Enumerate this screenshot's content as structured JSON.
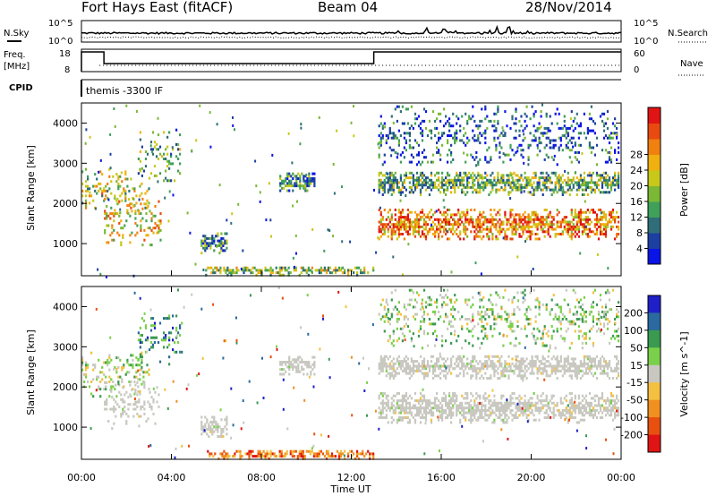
{
  "header": {
    "station": "Fort Hays East (fitACF)",
    "beam": "Beam 04",
    "date": "28/Nov/2014"
  },
  "top_panels": {
    "nsky_label": "N.Sky",
    "nsearch_label": "N.Search",
    "freq_label_1": "Freq.",
    "freq_label_2": "[MHz]",
    "nave_label": "Nave",
    "cpid_label": "CPID",
    "cpid_text": "themis -3300 IF",
    "noise_left_ticks": [
      "10^5",
      "10^0"
    ],
    "noise_right_ticks": [
      "10^5",
      "10^0"
    ],
    "freq_left_ticks": [
      "18",
      "8"
    ],
    "freq_right_ticks": [
      "60",
      "0"
    ]
  },
  "chart_data": [
    {
      "type": "heatmap",
      "quantity": "power",
      "ylabel": "Slant Range [km]",
      "xlabel": "",
      "xlim_hours": [
        0,
        24
      ],
      "ylim": [
        200,
        4500
      ],
      "yticks": [
        1000,
        2000,
        3000,
        4000
      ],
      "colorbar_label": "Power [dB]",
      "colorbar_ticks": [
        4,
        8,
        12,
        16,
        20,
        24,
        28
      ],
      "colorbar_colors": [
        "#0a14e6",
        "#1c3fa2",
        "#2f6e78",
        "#3fa05a",
        "#7ab836",
        "#c8c81a",
        "#f0b010",
        "#f08010",
        "#e84a10",
        "#e01414"
      ],
      "regions": [
        {
          "t": [
            0.0,
            3.0
          ],
          "r": [
            1800,
            2900
          ],
          "level": 0.55
        },
        {
          "t": [
            1.0,
            3.5
          ],
          "r": [
            1000,
            2200
          ],
          "level": 0.6
        },
        {
          "t": [
            2.5,
            4.5
          ],
          "r": [
            2600,
            3900
          ],
          "level": 0.35
        },
        {
          "t": [
            5.3,
            6.5
          ],
          "r": [
            800,
            1300
          ],
          "level": 0.3
        },
        {
          "t": [
            5.5,
            13.0
          ],
          "r": [
            250,
            450
          ],
          "level": 0.45
        },
        {
          "t": [
            8.8,
            10.4
          ],
          "r": [
            2350,
            2800
          ],
          "level": 0.3
        },
        {
          "t": [
            13.2,
            24.0
          ],
          "r": [
            1150,
            1900
          ],
          "level": 0.75
        },
        {
          "t": [
            13.2,
            24.0
          ],
          "r": [
            2250,
            2850
          ],
          "level": 0.4
        },
        {
          "t": [
            13.2,
            24.0
          ],
          "r": [
            3000,
            4500
          ],
          "level": 0.2
        }
      ]
    },
    {
      "type": "heatmap",
      "quantity": "velocity",
      "ylabel": "Slant Range [km]",
      "xlabel": "Time UT",
      "xlim_hours": [
        0,
        24
      ],
      "xtick_labels": [
        "00:00",
        "04:00",
        "08:00",
        "12:00",
        "16:00",
        "20:00",
        "00:00"
      ],
      "ylim": [
        200,
        4500
      ],
      "yticks": [
        1000,
        2000,
        3000,
        4000
      ],
      "colorbar_label": "Velocity [m s^-1]",
      "colorbar_ticks": [
        200,
        100,
        50,
        15,
        -15,
        -50,
        -100,
        -200
      ],
      "colorbar_colors": [
        "#2020c8",
        "#2a6aa0",
        "#3a9a50",
        "#7ad04a",
        "#c8c8c0",
        "#f4c040",
        "#f09020",
        "#e85010",
        "#e01414"
      ],
      "ground_color": "#c8c8c0",
      "regions": [
        {
          "t": [
            0.0,
            3.0
          ],
          "r": [
            1800,
            2900
          ],
          "vel": 0.1
        },
        {
          "t": [
            1.0,
            3.5
          ],
          "r": [
            1000,
            2200
          ],
          "vel": 0.0
        },
        {
          "t": [
            2.5,
            4.5
          ],
          "r": [
            2600,
            3900
          ],
          "vel": 0.5
        },
        {
          "t": [
            5.3,
            6.5
          ],
          "r": [
            800,
            1300
          ],
          "vel": 0.0
        },
        {
          "t": [
            5.5,
            13.0
          ],
          "r": [
            250,
            450
          ],
          "vel": -0.5
        },
        {
          "t": [
            8.8,
            10.4
          ],
          "r": [
            2350,
            2800
          ],
          "vel": 0.0
        },
        {
          "t": [
            13.2,
            24.0
          ],
          "r": [
            1150,
            1900
          ],
          "vel": 0.0
        },
        {
          "t": [
            13.2,
            24.0
          ],
          "r": [
            2250,
            2850
          ],
          "vel": 0.0
        },
        {
          "t": [
            13.2,
            24.0
          ],
          "r": [
            3000,
            4500
          ],
          "vel": 0.15
        }
      ]
    }
  ]
}
